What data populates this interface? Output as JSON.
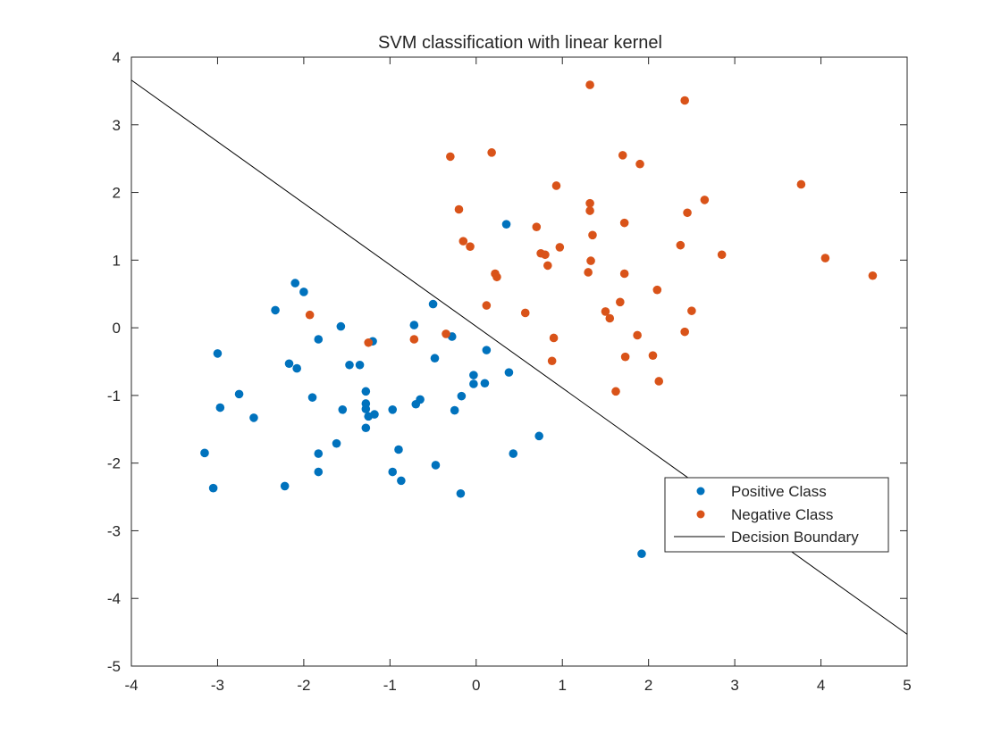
{
  "chart_data": {
    "type": "scatter",
    "title": "SVM classification with linear kernel",
    "xlabel": "",
    "ylabel": "",
    "xlim": [
      -4,
      5
    ],
    "ylim": [
      -5,
      4
    ],
    "xticks": [
      -4,
      -3,
      -2,
      -1,
      0,
      1,
      2,
      3,
      4,
      5
    ],
    "yticks": [
      -5,
      -4,
      -3,
      -2,
      -1,
      0,
      1,
      2,
      3,
      4
    ],
    "grid": false,
    "legend_position": "right",
    "series": [
      {
        "name": "Positive Class",
        "kind": "scatter",
        "color": "#0072BD",
        "points": [
          [
            -3.15,
            -1.85
          ],
          [
            -3.05,
            -2.37
          ],
          [
            -3.0,
            -0.38
          ],
          [
            -2.97,
            -1.18
          ],
          [
            -2.75,
            -0.98
          ],
          [
            -2.58,
            -1.33
          ],
          [
            -2.33,
            0.26
          ],
          [
            -2.22,
            -2.34
          ],
          [
            -2.17,
            -0.53
          ],
          [
            -2.1,
            0.66
          ],
          [
            -2.08,
            -0.6
          ],
          [
            -2.0,
            0.53
          ],
          [
            -1.9,
            -1.03
          ],
          [
            -1.83,
            -0.17
          ],
          [
            -1.83,
            -1.86
          ],
          [
            -1.83,
            -2.13
          ],
          [
            -1.62,
            -1.71
          ],
          [
            -1.57,
            0.02
          ],
          [
            -1.55,
            -1.21
          ],
          [
            -1.47,
            -0.55
          ],
          [
            -1.35,
            -0.55
          ],
          [
            -1.28,
            -0.94
          ],
          [
            -1.28,
            -1.12
          ],
          [
            -1.28,
            -1.2
          ],
          [
            -1.28,
            -1.48
          ],
          [
            -1.25,
            -1.31
          ],
          [
            -1.2,
            -0.2
          ],
          [
            -1.18,
            -1.28
          ],
          [
            -0.97,
            -1.21
          ],
          [
            -0.97,
            -2.13
          ],
          [
            -0.9,
            -1.8
          ],
          [
            -0.87,
            -2.26
          ],
          [
            -0.72,
            0.04
          ],
          [
            -0.7,
            -1.13
          ],
          [
            -0.65,
            -1.06
          ],
          [
            -0.5,
            0.35
          ],
          [
            -0.48,
            -0.45
          ],
          [
            -0.47,
            -2.03
          ],
          [
            -0.28,
            -0.13
          ],
          [
            -0.25,
            -1.22
          ],
          [
            -0.18,
            -2.45
          ],
          [
            -0.17,
            -1.01
          ],
          [
            -0.03,
            -0.7
          ],
          [
            -0.03,
            -0.83
          ],
          [
            0.1,
            -0.82
          ],
          [
            0.12,
            -0.33
          ],
          [
            0.35,
            1.53
          ],
          [
            0.38,
            -0.66
          ],
          [
            0.43,
            -1.86
          ],
          [
            0.73,
            -1.6
          ],
          [
            1.92,
            -3.34
          ]
        ]
      },
      {
        "name": "Negative Class",
        "kind": "scatter",
        "color": "#D95319",
        "points": [
          [
            -1.93,
            0.19
          ],
          [
            -1.25,
            -0.22
          ],
          [
            -0.72,
            -0.17
          ],
          [
            -0.35,
            -0.09
          ],
          [
            -0.3,
            2.53
          ],
          [
            -0.2,
            1.75
          ],
          [
            -0.15,
            1.28
          ],
          [
            -0.07,
            1.2
          ],
          [
            0.12,
            0.33
          ],
          [
            0.18,
            2.59
          ],
          [
            0.22,
            0.8
          ],
          [
            0.24,
            0.75
          ],
          [
            0.57,
            0.22
          ],
          [
            0.7,
            1.49
          ],
          [
            0.75,
            1.1
          ],
          [
            0.8,
            1.08
          ],
          [
            0.83,
            0.92
          ],
          [
            0.88,
            -0.49
          ],
          [
            0.9,
            -0.15
          ],
          [
            0.93,
            2.1
          ],
          [
            0.97,
            1.19
          ],
          [
            1.3,
            0.82
          ],
          [
            1.32,
            3.59
          ],
          [
            1.32,
            1.84
          ],
          [
            1.32,
            1.73
          ],
          [
            1.33,
            0.99
          ],
          [
            1.35,
            1.37
          ],
          [
            1.5,
            0.24
          ],
          [
            1.55,
            0.14
          ],
          [
            1.62,
            -0.94
          ],
          [
            1.67,
            0.38
          ],
          [
            1.7,
            2.55
          ],
          [
            1.72,
            1.55
          ],
          [
            1.72,
            0.8
          ],
          [
            1.73,
            -0.43
          ],
          [
            1.87,
            -0.11
          ],
          [
            1.9,
            2.42
          ],
          [
            2.05,
            -0.41
          ],
          [
            2.1,
            0.56
          ],
          [
            2.12,
            -0.79
          ],
          [
            2.37,
            1.22
          ],
          [
            2.42,
            3.36
          ],
          [
            2.42,
            -0.06
          ],
          [
            2.45,
            1.7
          ],
          [
            2.5,
            0.25
          ],
          [
            2.65,
            1.89
          ],
          [
            2.85,
            1.08
          ],
          [
            3.77,
            2.12
          ],
          [
            4.05,
            1.03
          ],
          [
            4.6,
            0.77
          ]
        ]
      },
      {
        "name": "Decision Boundary",
        "kind": "line",
        "color": "#000000",
        "points": [
          [
            -4,
            3.66
          ],
          [
            5,
            -4.53
          ]
        ]
      }
    ]
  }
}
